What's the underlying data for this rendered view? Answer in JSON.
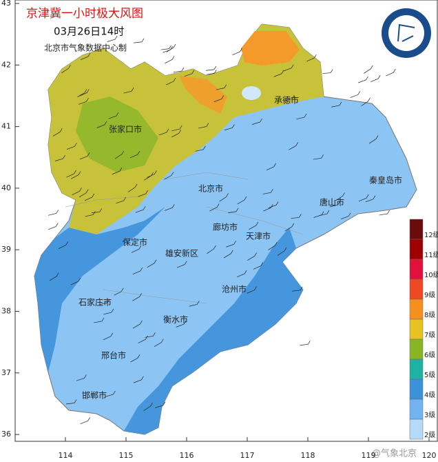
{
  "header": {
    "title": "京津冀一小时极大风图",
    "time": "03月26日14时",
    "producer": "北京市气象数据中心制"
  },
  "axes": {
    "lat_ticks": [
      43,
      42,
      41,
      40,
      39,
      38,
      37,
      36
    ],
    "lon_ticks": [
      114,
      115,
      116,
      117,
      118,
      119,
      120
    ]
  },
  "cities": [
    "张家口市",
    "承德市",
    "北京市",
    "秦皇岛市",
    "唐山市",
    "廊坊市",
    "天津市",
    "保定市",
    "雄安新区",
    "沧州市",
    "石家庄市",
    "衡水市",
    "邢台市",
    "邯郸市"
  ],
  "legend": [
    {
      "label": "12级",
      "color": "#6b0c0c"
    },
    {
      "label": "11级",
      "color": "#9e0000"
    },
    {
      "label": "10级",
      "color": "#e0123c"
    },
    {
      "label": "9级",
      "color": "#f04822"
    },
    {
      "label": "8级",
      "color": "#f5901e"
    },
    {
      "label": "7级",
      "color": "#e6c222"
    },
    {
      "label": "6级",
      "color": "#88b524"
    },
    {
      "label": "5级",
      "color": "#1fb2a4"
    },
    {
      "label": "4级",
      "color": "#3a92da"
    },
    {
      "label": "3级",
      "color": "#72b4f2"
    },
    {
      "label": "2级",
      "color": "#b4daf8"
    }
  ],
  "watermark": "@气象北京"
}
